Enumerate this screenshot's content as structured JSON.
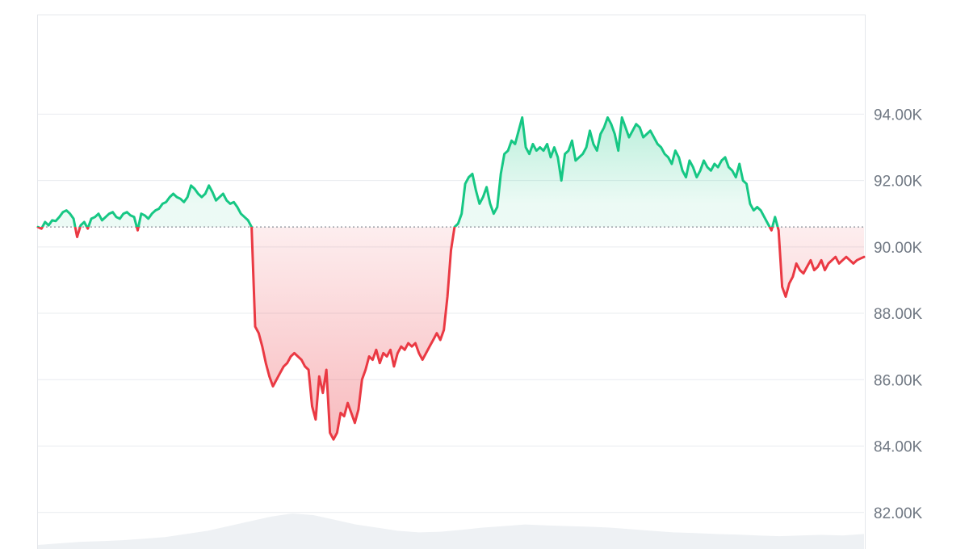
{
  "chart_data": {
    "type": "area",
    "title": "",
    "xlabel": "",
    "ylabel": "",
    "baseline": 90600,
    "ylim": [
      80900,
      97000
    ],
    "y_ticks": [
      82000,
      84000,
      86000,
      88000,
      90000,
      92000,
      94000
    ],
    "y_tick_labels": [
      "82.00K",
      "84.00K",
      "86.00K",
      "88.00K",
      "90.00K",
      "92.00K",
      "94.00K"
    ],
    "grid": true,
    "colors": {
      "above": "#16c784",
      "below": "#ea3943",
      "grid": "#e9ecef",
      "baseline": "#8a8f98",
      "volume": "#eef1f4",
      "axis_text": "#6f7782"
    },
    "series": [
      {
        "values": [
          90600,
          90550,
          90750,
          90650,
          90800,
          90780,
          90900,
          91050,
          91100,
          91000,
          90850,
          90300,
          90650,
          90750,
          90550,
          90850,
          90900,
          91000,
          90800,
          90900,
          91000,
          91050,
          90900,
          90850,
          91000,
          91050,
          90950,
          90900,
          90500,
          91000,
          90950,
          90850,
          91000,
          91100,
          91150,
          91300,
          91350,
          91500,
          91600,
          91500,
          91450,
          91350,
          91500,
          91850,
          91750,
          91600,
          91500,
          91600,
          91850,
          91650,
          91400,
          91500,
          91600,
          91400,
          91300,
          91350,
          91200,
          91000,
          90900,
          90800,
          90600,
          87600,
          87400,
          87000,
          86500,
          86100,
          85800,
          86000,
          86200,
          86400,
          86500,
          86700,
          86800,
          86700,
          86600,
          86400,
          86300,
          85200,
          84800,
          86100,
          85600,
          86300,
          84400,
          84200,
          84400,
          85000,
          84900,
          85300,
          85000,
          84700,
          85100,
          86000,
          86300,
          86700,
          86600,
          86900,
          86500,
          86800,
          86700,
          86900,
          86400,
          86800,
          87000,
          86900,
          87100,
          87000,
          87100,
          86800,
          86600,
          86800,
          87000,
          87200,
          87400,
          87200,
          87500,
          88500,
          89900,
          90600,
          90700,
          91000,
          91900,
          92100,
          92200,
          91700,
          91300,
          91500,
          91800,
          91300,
          91000,
          91200,
          92200,
          92800,
          92900,
          93200,
          93100,
          93500,
          93900,
          93000,
          92800,
          93100,
          92900,
          93000,
          92900,
          93100,
          92700,
          93000,
          92700,
          92000,
          92800,
          92900,
          93200,
          92600,
          92700,
          92800,
          93000,
          93500,
          93100,
          92900,
          93400,
          93600,
          93900,
          93700,
          93400,
          92900,
          93900,
          93600,
          93300,
          93500,
          93700,
          93600,
          93300,
          93400,
          93500,
          93300,
          93100,
          93000,
          92800,
          92700,
          92500,
          92900,
          92700,
          92300,
          92100,
          92600,
          92400,
          92100,
          92300,
          92600,
          92400,
          92300,
          92500,
          92400,
          92600,
          92700,
          92400,
          92300,
          92100,
          92500,
          92000,
          91900,
          91300,
          91100,
          91200,
          91100,
          90900,
          90700,
          90500,
          90900,
          90500,
          88800,
          88500,
          88900,
          89100,
          89500,
          89300,
          89200,
          89400,
          89600,
          89300,
          89400,
          89600,
          89300,
          89500,
          89600,
          89700,
          89500,
          89600,
          89700,
          89600,
          89500,
          89600,
          89650,
          89700
        ]
      }
    ],
    "volume": [
      0.0,
      0.05,
      0.1,
      0.12,
      0.15,
      0.2,
      0.25,
      0.35,
      0.45,
      0.6,
      0.75,
      0.9,
      1.0,
      0.95,
      0.8,
      0.65,
      0.55,
      0.45,
      0.4,
      0.42,
      0.48,
      0.55,
      0.6,
      0.65,
      0.62,
      0.6,
      0.58,
      0.55,
      0.5,
      0.45,
      0.4,
      0.38,
      0.35,
      0.33,
      0.3,
      0.28,
      0.3,
      0.32,
      0.3,
      0.35
    ]
  }
}
